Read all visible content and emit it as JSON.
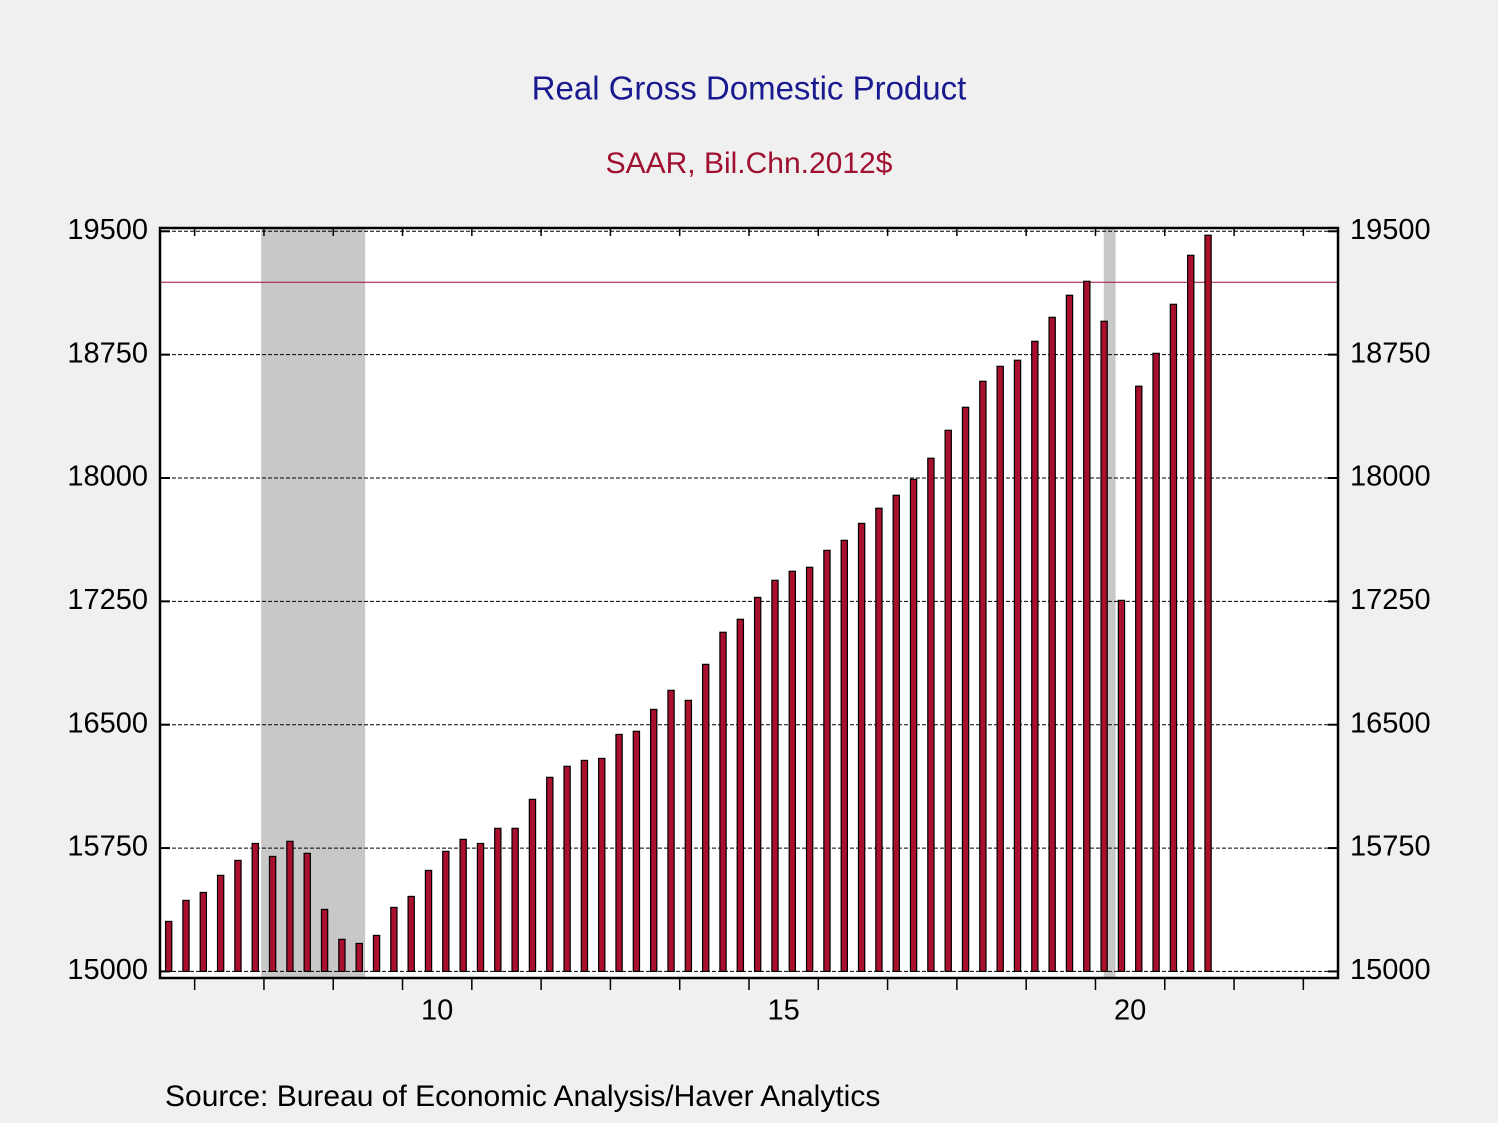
{
  "chart_data": {
    "type": "bar",
    "title": "Real Gross Domestic Product",
    "subtitle": "SAAR, Bil.Chn.2012$",
    "source": "Source:  Bureau of Economic Analysis/Haver Analytics",
    "color": "#a8102e",
    "x": [
      2006.625,
      2006.875,
      2007.125,
      2007.375,
      2007.625,
      2007.875,
      2008.125,
      2008.375,
      2008.625,
      2008.875,
      2009.125,
      2009.375,
      2009.625,
      2009.875,
      2010.125,
      2010.375,
      2010.625,
      2010.875,
      2011.125,
      2011.375,
      2011.625,
      2011.875,
      2012.125,
      2012.375,
      2012.625,
      2012.875,
      2013.125,
      2013.375,
      2013.625,
      2013.875,
      2014.125,
      2014.375,
      2014.625,
      2014.875,
      2015.125,
      2015.375,
      2015.625,
      2015.875,
      2016.125,
      2016.375,
      2016.625,
      2016.875,
      2017.125,
      2017.375,
      2017.625,
      2017.875,
      2018.125,
      2018.375,
      2018.625,
      2018.875,
      2019.125,
      2019.375,
      2019.625,
      2019.875,
      2020.125,
      2020.375,
      2020.625,
      2020.875,
      2021.125,
      2021.375,
      2021.625
    ],
    "values": [
      15304,
      15432,
      15480,
      15584,
      15675,
      15778,
      15699,
      15791,
      15718,
      15377,
      15195,
      15170,
      15219,
      15389,
      15456,
      15614,
      15730,
      15803,
      15778,
      15870,
      15870,
      16046,
      16180,
      16247,
      16283,
      16295,
      16441,
      16460,
      16593,
      16709,
      16648,
      16867,
      17062,
      17141,
      17274,
      17378,
      17433,
      17457,
      17560,
      17621,
      17724,
      17816,
      17895,
      17992,
      18120,
      18290,
      18430,
      18588,
      18679,
      18716,
      18831,
      18977,
      19111,
      19196,
      18953,
      17256,
      18558,
      18758,
      19056,
      19354,
      19476
    ],
    "xlim": [
      2006.5,
      2023.5
    ],
    "xticks": [
      {
        "value": 2010.5,
        "label": "10"
      },
      {
        "value": 2015.5,
        "label": "15"
      },
      {
        "value": 2020.5,
        "label": "20"
      }
    ],
    "xminor_ticks": [
      2007,
      2008,
      2009,
      2010,
      2011,
      2012,
      2013,
      2014,
      2015,
      2016,
      2017,
      2018,
      2019,
      2020,
      2021,
      2022,
      2023
    ],
    "ylim": [
      14960,
      19520
    ],
    "yticks": [
      15000,
      15750,
      16500,
      17250,
      18000,
      18750,
      19500
    ],
    "grid": true,
    "reference_line": 19190,
    "shading": [
      [
        2007.96,
        2009.46
      ],
      [
        2020.12,
        2020.29
      ]
    ]
  }
}
